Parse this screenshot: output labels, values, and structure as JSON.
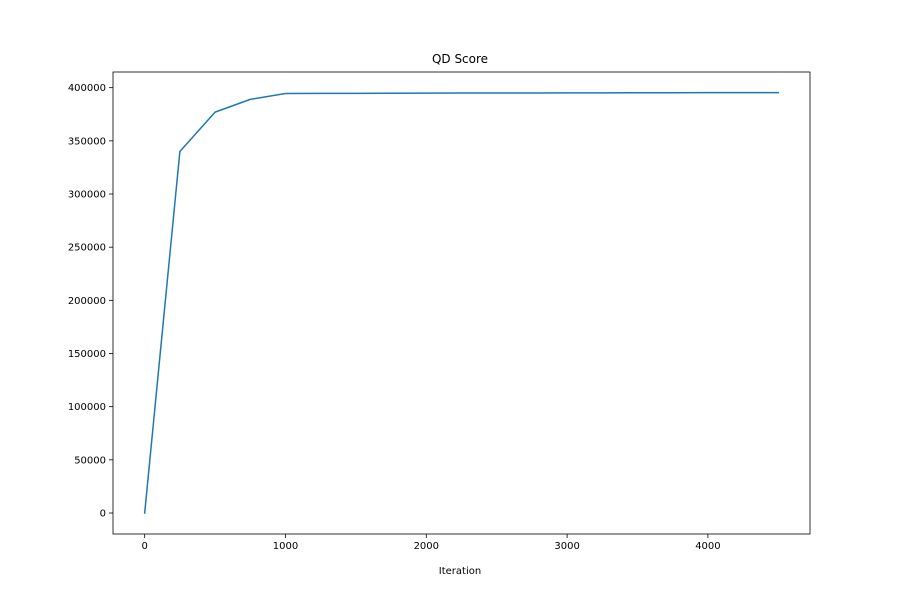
{
  "chart_data": {
    "type": "line",
    "title": "QD Score",
    "xlabel": "Iteration",
    "ylabel": "",
    "xlim": [
      -225,
      4725
    ],
    "ylim": [
      -19750,
      414750
    ],
    "xticks": [
      0,
      1000,
      2000,
      3000,
      4000
    ],
    "yticks": [
      0,
      50000,
      100000,
      150000,
      200000,
      250000,
      300000,
      350000,
      400000
    ],
    "grid": false,
    "legend": "none",
    "series": [
      {
        "color": "#1f77b4",
        "x": [
          0,
          250,
          500,
          750,
          1000,
          1250,
          1500,
          1750,
          2000,
          2250,
          2500,
          2750,
          3000,
          3250,
          3500,
          3750,
          4000,
          4250,
          4500
        ],
        "y": [
          0,
          340000,
          377000,
          389000,
          394500,
          394600,
          394700,
          394800,
          394900,
          394950,
          395000,
          395050,
          395100,
          395150,
          395200,
          395250,
          395300,
          395350,
          395400
        ]
      }
    ]
  }
}
